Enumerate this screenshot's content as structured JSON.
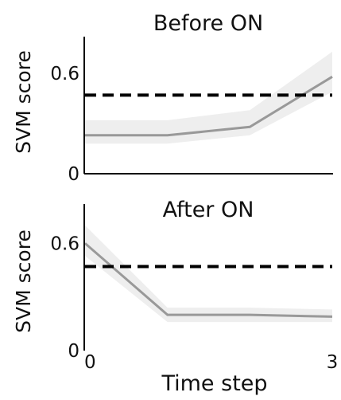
{
  "chart_data": [
    {
      "type": "line",
      "title": "Before ON",
      "ylabel": "SVM score",
      "xlabel": "",
      "xlim": [
        0,
        3
      ],
      "ylim": [
        0,
        0.82
      ],
      "yticks": [
        0,
        0.6
      ],
      "ytick_labels": [
        "0",
        "0.6"
      ],
      "xticks": [],
      "xtick_labels": [],
      "series": [
        {
          "x": [
            0,
            1,
            2,
            3
          ],
          "values": [
            0.23,
            0.23,
            0.28,
            0.58
          ],
          "lower": [
            0.18,
            0.18,
            0.23,
            0.49
          ],
          "upper": [
            0.32,
            0.32,
            0.38,
            0.73
          ],
          "color": "#999999",
          "band_color": "#eeeeee"
        }
      ],
      "reference_line": {
        "y": 0.47,
        "style": "dashed",
        "color": "#000000"
      }
    },
    {
      "type": "line",
      "title": "After ON",
      "ylabel": "SVM score",
      "xlabel": "Time step",
      "xlim": [
        0,
        3
      ],
      "ylim": [
        0,
        0.82
      ],
      "yticks": [
        0,
        0.6
      ],
      "ytick_labels": [
        "0",
        "0.6"
      ],
      "xticks": [
        0,
        3
      ],
      "xtick_labels": [
        "0",
        "3"
      ],
      "series": [
        {
          "x": [
            0,
            1,
            2,
            3
          ],
          "values": [
            0.6,
            0.2,
            0.2,
            0.19
          ],
          "lower": [
            0.53,
            0.16,
            0.16,
            0.16
          ],
          "upper": [
            0.7,
            0.24,
            0.24,
            0.23
          ],
          "color": "#999999",
          "band_color": "#eeeeee"
        }
      ],
      "reference_line": {
        "y": 0.47,
        "style": "dashed",
        "color": "#000000"
      }
    }
  ]
}
